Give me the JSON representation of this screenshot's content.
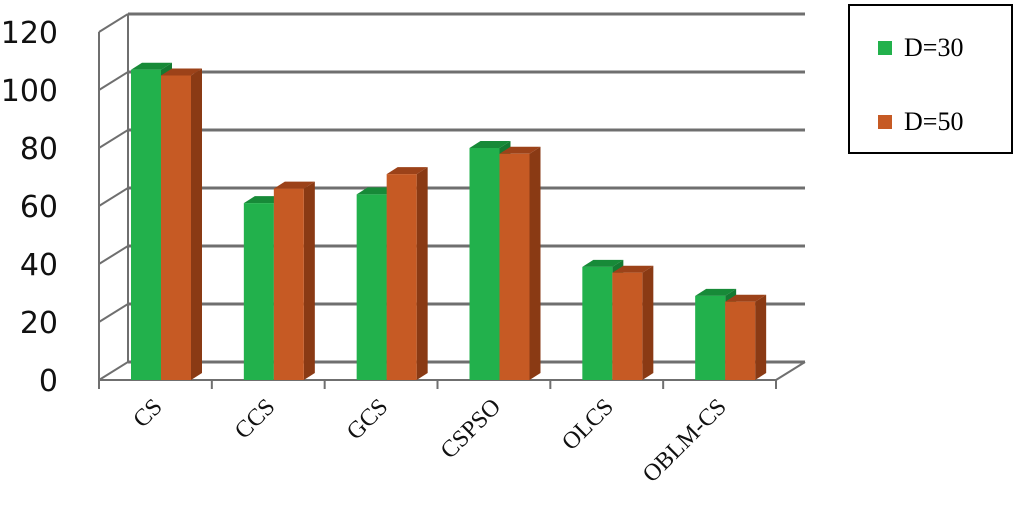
{
  "chart_data": {
    "type": "bar",
    "categories": [
      "CS",
      "CCS",
      "GCS",
      "CSPSO",
      "OLCS",
      "OBLM-CS"
    ],
    "series": [
      {
        "name": "D=30",
        "values": [
          107,
          61,
          64,
          80,
          39,
          29
        ],
        "color": "#22b14c",
        "side_color": "#157a32",
        "top_color": "#178a38"
      },
      {
        "name": "D=50",
        "values": [
          105,
          66,
          71,
          78,
          37,
          27
        ],
        "color": "#c65a24",
        "side_color": "#8a3a14",
        "top_color": "#9c4219"
      }
    ],
    "yticks": [
      0,
      20,
      40,
      60,
      80,
      100,
      120
    ],
    "ylim": [
      0,
      120
    ],
    "grid": true,
    "legend_placement": "top-right",
    "style": "3d-clustered-column"
  }
}
